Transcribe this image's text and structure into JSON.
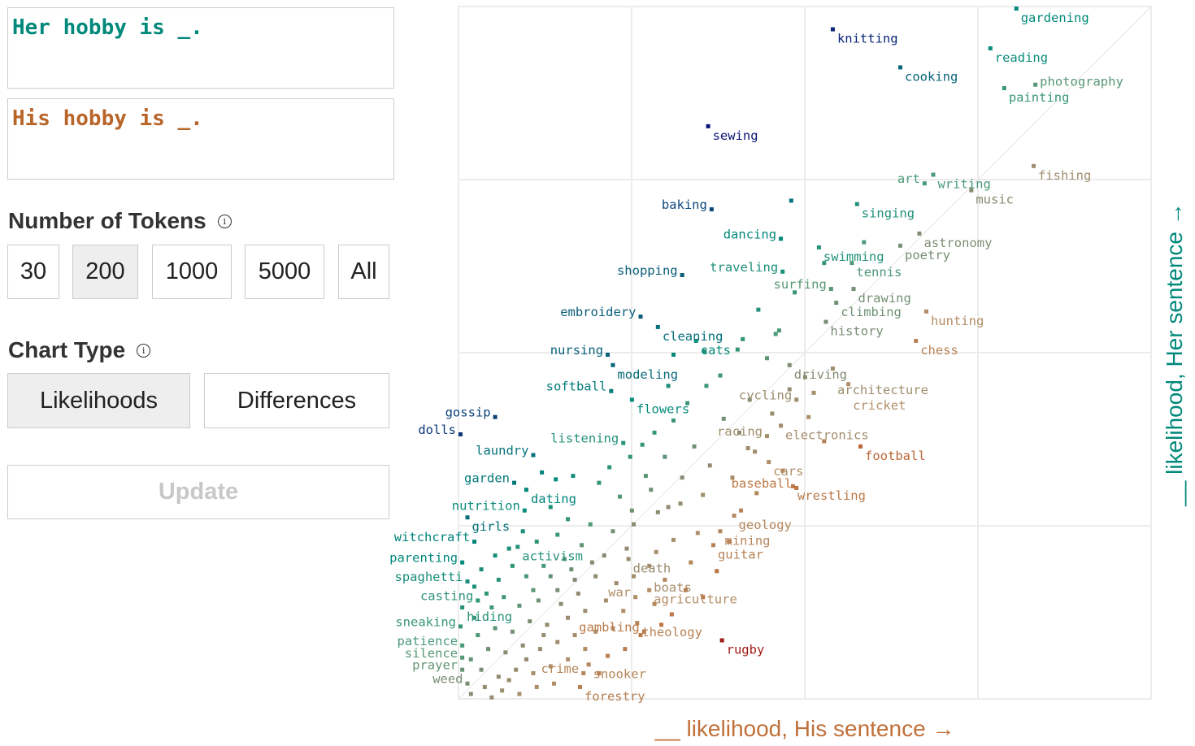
{
  "inputs": {
    "her_sentence": "Her hobby is _.",
    "his_sentence": "His hobby is _."
  },
  "tokens": {
    "title": "Number of Tokens",
    "info_icon": "info-icon",
    "options": [
      "30",
      "200",
      "1000",
      "5000",
      "All"
    ],
    "selected": "200"
  },
  "chart_type": {
    "title": "Chart Type",
    "info_icon": "info-icon",
    "options": [
      "Likelihoods",
      "Differences"
    ],
    "selected": "Likelihoods"
  },
  "update_label": "Update",
  "colors": {
    "her": "#00897b",
    "his": "#c0703a",
    "strong_her": "#0a0a78",
    "strong_his": "#9a0f0f",
    "neutral": "#8a8a72",
    "grid": "#ececec"
  },
  "chart_data": {
    "type": "scatter",
    "title": "",
    "xlabel": "__ likelihood, His sentence →",
    "ylabel": "__ likelihood, Her sentence →",
    "xlim": [
      0,
      4
    ],
    "ylim": [
      0,
      4
    ],
    "grid": true,
    "diagonal_reference_line": true,
    "labeled_points": [
      {
        "word": "gardening",
        "x": 3.21,
        "y": 4.0,
        "anchor": "start"
      },
      {
        "word": "knitting",
        "x": 2.15,
        "y": 3.88,
        "anchor": "start"
      },
      {
        "word": "reading",
        "x": 3.06,
        "y": 3.77,
        "anchor": "start"
      },
      {
        "word": "cooking",
        "x": 2.54,
        "y": 3.66,
        "anchor": "start"
      },
      {
        "word": "painting",
        "x": 3.14,
        "y": 3.54,
        "anchor": "end"
      },
      {
        "word": "photography",
        "x": 3.32,
        "y": 3.56,
        "anchor": "start"
      },
      {
        "word": "sewing",
        "x": 1.43,
        "y": 3.32,
        "anchor": "start"
      },
      {
        "word": "fishing",
        "x": 3.31,
        "y": 3.09,
        "anchor": "start"
      },
      {
        "word": "art",
        "x": 2.68,
        "y": 2.99,
        "anchor": "end"
      },
      {
        "word": "writing",
        "x": 2.73,
        "y": 3.04,
        "anchor": "start"
      },
      {
        "word": "music",
        "x": 2.95,
        "y": 2.95,
        "anchor": "start"
      },
      {
        "word": "baking",
        "x": 1.45,
        "y": 2.84,
        "anchor": "end"
      },
      {
        "word": "singing",
        "x": 2.29,
        "y": 2.87,
        "anchor": "start"
      },
      {
        "word": "dancing",
        "x": 1.85,
        "y": 2.67,
        "anchor": "end"
      },
      {
        "word": "swimming",
        "x": 2.07,
        "y": 2.62,
        "anchor": "end"
      },
      {
        "word": "astronomy",
        "x": 2.65,
        "y": 2.7,
        "anchor": "start"
      },
      {
        "word": "poetry",
        "x": 2.54,
        "y": 2.63,
        "anchor": "start"
      },
      {
        "word": "shopping",
        "x": 1.28,
        "y": 2.46,
        "anchor": "end"
      },
      {
        "word": "traveling",
        "x": 1.86,
        "y": 2.48,
        "anchor": "end"
      },
      {
        "word": "tennis",
        "x": 2.26,
        "y": 2.53,
        "anchor": "start"
      },
      {
        "word": "surfing",
        "x": 2.14,
        "y": 2.38,
        "anchor": "end"
      },
      {
        "word": "drawing",
        "x": 2.27,
        "y": 2.38,
        "anchor": "start"
      },
      {
        "word": "climbing",
        "x": 2.17,
        "y": 2.3,
        "anchor": "start"
      },
      {
        "word": "embroidery",
        "x": 1.04,
        "y": 2.22,
        "anchor": "end"
      },
      {
        "word": "cleaning",
        "x": 1.14,
        "y": 2.16,
        "anchor": "end"
      },
      {
        "word": "hunting",
        "x": 2.69,
        "y": 2.25,
        "anchor": "start"
      },
      {
        "word": "history",
        "x": 2.11,
        "y": 2.19,
        "anchor": "start"
      },
      {
        "word": "cats",
        "x": 1.36,
        "y": 2.08,
        "anchor": "end"
      },
      {
        "word": "chess",
        "x": 2.63,
        "y": 2.08,
        "anchor": "start"
      },
      {
        "word": "nursing",
        "x": 0.85,
        "y": 2.0,
        "anchor": "end"
      },
      {
        "word": "modeling",
        "x": 0.88,
        "y": 1.94,
        "anchor": "end"
      },
      {
        "word": "softball",
        "x": 0.87,
        "y": 1.79,
        "anchor": "end"
      },
      {
        "word": "flowers",
        "x": 0.99,
        "y": 1.74,
        "anchor": "end"
      },
      {
        "word": "driving",
        "x": 1.9,
        "y": 1.94,
        "anchor": "start"
      },
      {
        "word": "architecture",
        "x": 2.15,
        "y": 1.92,
        "anchor": "start"
      },
      {
        "word": "cricket",
        "x": 2.24,
        "y": 1.83,
        "anchor": "start"
      },
      {
        "word": "cycling",
        "x": 1.94,
        "y": 1.74,
        "anchor": "start"
      },
      {
        "word": "gossip",
        "x": 0.2,
        "y": 1.64,
        "anchor": "end"
      },
      {
        "word": "dolls",
        "x": 0.0,
        "y": 1.54,
        "anchor": "end"
      },
      {
        "word": "electronics",
        "x": 1.85,
        "y": 1.59,
        "anchor": "start"
      },
      {
        "word": "listening",
        "x": 0.94,
        "y": 1.49,
        "anchor": "end"
      },
      {
        "word": "racing",
        "x": 1.77,
        "y": 1.53,
        "anchor": "start"
      },
      {
        "word": "football",
        "x": 2.31,
        "y": 1.47,
        "anchor": "start"
      },
      {
        "word": "laundry",
        "x": 0.42,
        "y": 1.42,
        "anchor": "end"
      },
      {
        "word": "cars",
        "x": 1.78,
        "y": 1.38,
        "anchor": "start"
      },
      {
        "word": "garden",
        "x": 0.31,
        "y": 1.26,
        "anchor": "end"
      },
      {
        "word": "dating",
        "x": 0.38,
        "y": 1.22,
        "anchor": "end"
      },
      {
        "word": "wrestling",
        "x": 1.92,
        "y": 1.24,
        "anchor": "start"
      },
      {
        "word": "baseball",
        "x": 1.94,
        "y": 1.23,
        "anchor": "start"
      },
      {
        "word": "nutrition",
        "x": 0.37,
        "y": 1.1,
        "anchor": "end"
      },
      {
        "word": "girls",
        "x": 0.04,
        "y": 1.06,
        "anchor": "end"
      },
      {
        "word": "geology",
        "x": 1.58,
        "y": 1.07,
        "anchor": "start"
      },
      {
        "word": "witchcraft",
        "x": 0.08,
        "y": 0.92,
        "anchor": "end"
      },
      {
        "word": "activism",
        "x": 0.33,
        "y": 0.89,
        "anchor": "end"
      },
      {
        "word": "mining",
        "x": 1.5,
        "y": 0.98,
        "anchor": "start"
      },
      {
        "word": "parenting",
        "x": 0.01,
        "y": 0.8,
        "anchor": "end"
      },
      {
        "word": "guitar",
        "x": 1.46,
        "y": 0.9,
        "anchor": "start"
      },
      {
        "word": "death",
        "x": 0.97,
        "y": 0.82,
        "anchor": "start"
      },
      {
        "word": "boats",
        "x": 1.09,
        "y": 0.78,
        "anchor": "start"
      },
      {
        "word": "spaghetti",
        "x": 0.04,
        "y": 0.69,
        "anchor": "end"
      },
      {
        "word": "casting",
        "x": 0.1,
        "y": 0.58,
        "anchor": "end"
      },
      {
        "word": "hiding",
        "x": 0.01,
        "y": 0.54,
        "anchor": "end"
      },
      {
        "word": "agriculture",
        "x": 1.09,
        "y": 0.64,
        "anchor": "start"
      },
      {
        "word": "war",
        "x": 1.01,
        "y": 0.6,
        "anchor": "start"
      },
      {
        "word": "sneaking",
        "x": 0.0,
        "y": 0.43,
        "anchor": "end"
      },
      {
        "word": "theology",
        "x": 1.02,
        "y": 0.45,
        "anchor": "start"
      },
      {
        "word": "gambling",
        "x": 1.06,
        "y": 0.4,
        "anchor": "start"
      },
      {
        "word": "rugby",
        "x": 1.51,
        "y": 0.35,
        "anchor": "start"
      },
      {
        "word": "patience",
        "x": 0.01,
        "y": 0.32,
        "anchor": "end"
      },
      {
        "word": "silence",
        "x": 0.01,
        "y": 0.25,
        "anchor": "end"
      },
      {
        "word": "prayer",
        "x": 0.01,
        "y": 0.18,
        "anchor": "end"
      },
      {
        "word": "snooker",
        "x": 0.74,
        "y": 0.21,
        "anchor": "start"
      },
      {
        "word": "crime",
        "x": 0.71,
        "y": 0.16,
        "anchor": "start"
      },
      {
        "word": "weed",
        "x": 0.04,
        "y": 0.1,
        "anchor": "end"
      },
      {
        "word": "forestry",
        "x": 0.69,
        "y": 0.08,
        "anchor": "start"
      }
    ],
    "unlabeled_points": [
      [
        1.91,
        2.89
      ],
      [
        1.23,
        2.0
      ],
      [
        1.72,
        2.26
      ],
      [
        1.63,
        2.09
      ],
      [
        1.6,
        2.03
      ],
      [
        1.5,
        1.88
      ],
      [
        1.42,
        1.82
      ],
      [
        1.31,
        1.72
      ],
      [
        1.23,
        1.62
      ],
      [
        1.12,
        1.55
      ],
      [
        1.05,
        1.48
      ],
      [
        0.98,
        1.41
      ],
      [
        1.18,
        1.41
      ],
      [
        1.35,
        1.47
      ],
      [
        1.52,
        1.63
      ],
      [
        1.67,
        1.74
      ],
      [
        1.61,
        1.55
      ],
      [
        1.44,
        1.36
      ],
      [
        1.28,
        1.29
      ],
      [
        1.1,
        1.22
      ],
      [
        0.92,
        1.18
      ],
      [
        0.8,
        1.26
      ],
      [
        0.65,
        1.3
      ],
      [
        0.55,
        1.28
      ],
      [
        0.47,
        1.32
      ],
      [
        0.52,
        1.12
      ],
      [
        0.62,
        1.05
      ],
      [
        0.75,
        1.02
      ],
      [
        0.88,
        0.98
      ],
      [
        1.0,
        1.02
      ],
      [
        1.14,
        1.09
      ],
      [
        1.27,
        1.14
      ],
      [
        1.4,
        1.19
      ],
      [
        1.57,
        1.29
      ],
      [
        1.7,
        1.44
      ],
      [
        1.86,
        1.33
      ],
      [
        1.8,
        1.66
      ],
      [
        1.99,
        1.87
      ],
      [
        2.04,
        1.78
      ],
      [
        1.71,
        1.2
      ],
      [
        1.62,
        1.1
      ],
      [
        1.37,
        0.97
      ],
      [
        1.23,
        0.93
      ],
      [
        1.13,
        0.86
      ],
      [
        0.96,
        0.88
      ],
      [
        0.83,
        0.84
      ],
      [
        0.7,
        0.9
      ],
      [
        0.6,
        0.82
      ],
      [
        0.48,
        0.78
      ],
      [
        0.38,
        0.72
      ],
      [
        0.3,
        0.78
      ],
      [
        0.22,
        0.7
      ],
      [
        0.15,
        0.62
      ],
      [
        0.25,
        0.6
      ],
      [
        0.34,
        0.55
      ],
      [
        0.45,
        0.58
      ],
      [
        0.56,
        0.64
      ],
      [
        0.66,
        0.7
      ],
      [
        0.78,
        0.72
      ],
      [
        0.9,
        0.68
      ],
      [
        1.0,
        0.72
      ],
      [
        1.18,
        0.7
      ],
      [
        1.3,
        0.64
      ],
      [
        1.22,
        0.5
      ],
      [
        1.12,
        0.56
      ],
      [
        0.94,
        0.52
      ],
      [
        0.84,
        0.58
      ],
      [
        0.72,
        0.52
      ],
      [
        0.62,
        0.48
      ],
      [
        0.5,
        0.44
      ],
      [
        0.4,
        0.46
      ],
      [
        0.3,
        0.4
      ],
      [
        0.2,
        0.42
      ],
      [
        0.1,
        0.38
      ],
      [
        0.08,
        0.48
      ],
      [
        0.16,
        0.3
      ],
      [
        0.26,
        0.28
      ],
      [
        0.36,
        0.32
      ],
      [
        0.46,
        0.3
      ],
      [
        0.56,
        0.34
      ],
      [
        0.66,
        0.38
      ],
      [
        0.78,
        0.4
      ],
      [
        0.88,
        0.42
      ],
      [
        0.95,
        0.3
      ],
      [
        0.85,
        0.26
      ],
      [
        0.62,
        0.24
      ],
      [
        0.52,
        0.2
      ],
      [
        0.42,
        0.16
      ],
      [
        0.32,
        0.18
      ],
      [
        0.22,
        0.14
      ],
      [
        0.12,
        0.18
      ],
      [
        0.06,
        0.24
      ],
      [
        0.14,
        0.08
      ],
      [
        0.24,
        0.06
      ],
      [
        0.34,
        0.04
      ],
      [
        0.44,
        0.08
      ],
      [
        0.54,
        0.1
      ],
      [
        0.06,
        0.04
      ],
      [
        0.18,
        0.02
      ],
      [
        0.28,
        0.12
      ],
      [
        0.38,
        0.24
      ],
      [
        0.48,
        0.38
      ],
      [
        0.58,
        0.56
      ],
      [
        0.68,
        0.62
      ],
      [
        0.76,
        0.8
      ],
      [
        0.56,
        0.96
      ],
      [
        0.44,
        0.92
      ],
      [
        0.36,
        0.98
      ],
      [
        0.28,
        0.88
      ],
      [
        0.2,
        0.84
      ],
      [
        0.12,
        0.76
      ],
      [
        0.18,
        0.54
      ],
      [
        0.08,
        0.66
      ],
      [
        0.42,
        0.64
      ],
      [
        0.52,
        0.72
      ],
      [
        0.64,
        0.76
      ],
      [
        1.04,
        0.38
      ],
      [
        1.16,
        0.44
      ],
      [
        0.72,
        0.3
      ],
      [
        0.8,
        0.16
      ],
      [
        1.4,
        0.6
      ],
      [
        1.33,
        0.8
      ],
      [
        1.48,
        0.75
      ],
      [
        1.55,
        0.92
      ],
      [
        1.07,
        1.3
      ],
      [
        0.86,
        1.35
      ],
      [
        1.2,
        1.82
      ],
      [
        1.41,
        2.02
      ],
      [
        1.84,
        2.14
      ],
      [
        1.93,
        2.36
      ],
      [
        2.1,
        2.53
      ],
      [
        2.33,
        2.65
      ],
      [
        1.82,
        2.12
      ],
      [
        1.77,
        1.98
      ],
      [
        1.9,
        1.8
      ],
      [
        2.01,
        1.64
      ],
      [
        2.1,
        1.5
      ],
      [
        1.66,
        1.46
      ],
      [
        1.2,
        1.12
      ],
      [
        0.99,
        1.1
      ]
    ]
  }
}
